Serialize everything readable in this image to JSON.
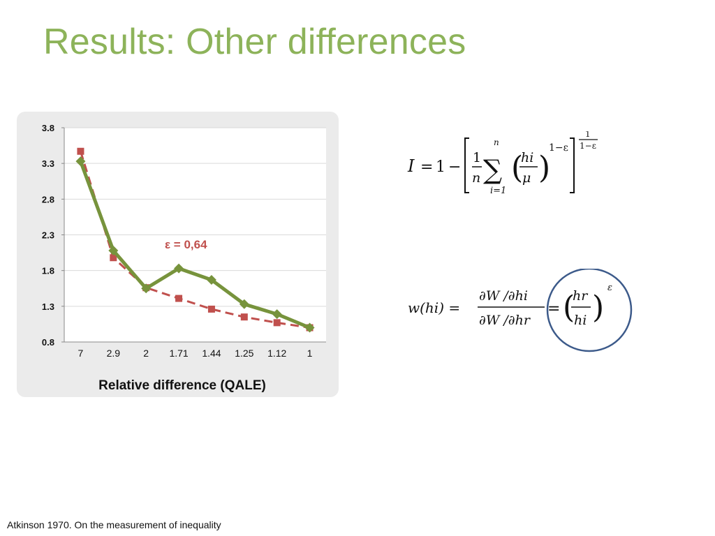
{
  "slide": {
    "title": "Results: Other differences",
    "citation": "Atkinson 1970. On the measurement of inequality"
  },
  "chart_data": {
    "type": "line",
    "x_categories": [
      "7",
      "2.9",
      "2",
      "1.71",
      "1.44",
      "1.25",
      "1.12",
      "1"
    ],
    "xlabel": "Relative difference (QALE)",
    "ylabel": "",
    "ylim": [
      0.8,
      3.8
    ],
    "yticks": [
      "3.8",
      "3.3",
      "2.8",
      "2.3",
      "1.8",
      "1.3",
      "0.8"
    ],
    "grid": true,
    "annotation": "ε = 0,64",
    "series": [
      {
        "color": "#77933c",
        "marker": "diamond",
        "line_style": "solid",
        "values": [
          3.33,
          2.08,
          1.55,
          1.83,
          1.67,
          1.33,
          1.19,
          1.0
        ]
      },
      {
        "color": "#c0504d",
        "marker": "square",
        "line_style": "dashed",
        "values": [
          3.47,
          1.98,
          1.56,
          1.41,
          1.26,
          1.15,
          1.07,
          1.0
        ]
      }
    ]
  },
  "formulas": {
    "index_symbol": "I",
    "one": "1",
    "one_frac_num": "1",
    "n_var": "n",
    "sum_upper": "n",
    "sum_lower": "i=1",
    "h_i": "hi",
    "mu": "μ",
    "exp_1_minus_eps": "1−ε",
    "outer_exp_num": "1",
    "outer_exp_den": "1−ε",
    "w_lhs": "w(hi) =",
    "partial_num": "∂W /∂hi",
    "partial_den": "∂W /∂hr",
    "h_r": "hr",
    "eps_exp": "ε",
    "circle_color": "#3c5a8a"
  }
}
